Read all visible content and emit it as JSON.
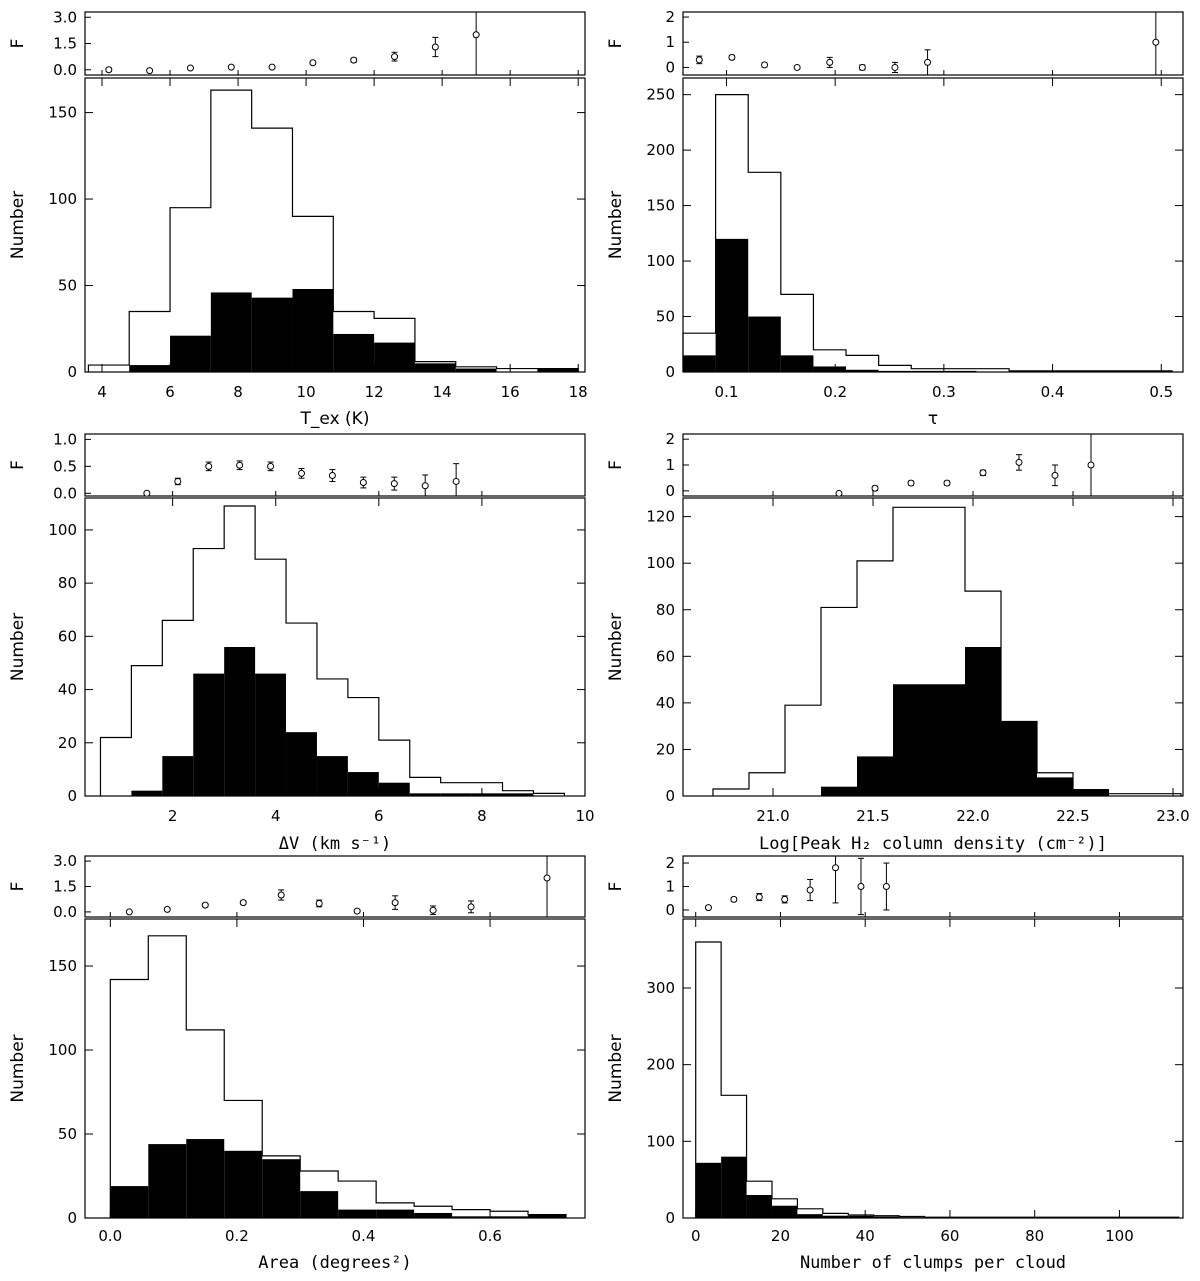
{
  "chart_data": [
    {
      "type": "bar",
      "xlabel": "T_ex (K)",
      "ylabel": "Number",
      "xlim": [
        3.5,
        18.2
      ],
      "ylim": [
        0,
        170
      ],
      "xticks": [
        4,
        6,
        8,
        10,
        12,
        14,
        16,
        18
      ],
      "yticks": [
        0,
        50,
        100,
        150
      ],
      "bin_edges": [
        3.6,
        4.8,
        6.0,
        7.2,
        8.4,
        9.6,
        10.8,
        12.0,
        13.2,
        14.4,
        15.6,
        16.8,
        18.0
      ],
      "open_counts": [
        4,
        35,
        95,
        163,
        141,
        90,
        35,
        31,
        6,
        3,
        2,
        2
      ],
      "filled_counts": [
        0,
        4,
        21,
        46,
        43,
        48,
        22,
        17,
        5,
        2,
        0,
        2
      ],
      "fraction_panel": {
        "ylabel": "F",
        "ylim": [
          -0.3,
          3.3
        ],
        "yticks": [
          0.0,
          1.5,
          3.0
        ],
        "ytick_labels": [
          "0.0",
          "1.5",
          "3.0"
        ],
        "x": [
          4.2,
          5.4,
          6.6,
          7.8,
          9.0,
          10.2,
          11.4,
          12.6,
          13.8,
          15.0
        ],
        "y": [
          0.0,
          -0.05,
          0.1,
          0.15,
          0.15,
          0.4,
          0.55,
          0.75,
          1.3,
          2.0
        ],
        "err": [
          0.1,
          0.05,
          0.05,
          0.05,
          0.05,
          0.08,
          0.12,
          0.25,
          0.55,
          2.8
        ]
      }
    },
    {
      "type": "bar",
      "xlabel": "τ",
      "ylabel": "Number",
      "xlim": [
        0.06,
        0.52
      ],
      "ylim": [
        0,
        265
      ],
      "xticks": [
        0.1,
        0.2,
        0.3,
        0.4,
        0.5
      ],
      "yticks": [
        0,
        50,
        100,
        150,
        200,
        250
      ],
      "bin_edges": [
        0.06,
        0.09,
        0.12,
        0.15,
        0.18,
        0.21,
        0.24,
        0.27,
        0.3,
        0.33,
        0.36,
        0.39,
        0.42,
        0.45,
        0.48,
        0.51
      ],
      "open_counts": [
        35,
        250,
        180,
        70,
        20,
        15,
        6,
        3,
        3,
        3,
        1,
        1,
        1,
        1,
        1
      ],
      "filled_counts": [
        15,
        120,
        50,
        15,
        5,
        2,
        1,
        1,
        1,
        0,
        0,
        0,
        0,
        0,
        0
      ],
      "fraction_panel": {
        "ylabel": "F",
        "ylim": [
          -0.3,
          2.2
        ],
        "yticks": [
          0,
          1,
          2
        ],
        "ytick_labels": [
          "0",
          "1",
          "2"
        ],
        "x": [
          0.075,
          0.105,
          0.135,
          0.165,
          0.195,
          0.225,
          0.255,
          0.285,
          0.495
        ],
        "y": [
          0.3,
          0.4,
          0.1,
          0.0,
          0.2,
          0.0,
          0.0,
          0.2,
          1.0
        ],
        "err": [
          0.15,
          0.08,
          0.08,
          0.05,
          0.2,
          0.1,
          0.2,
          0.5,
          2.5
        ]
      }
    },
    {
      "type": "bar",
      "xlabel": "ΔV (km s⁻¹)",
      "ylabel": "Number",
      "xlim": [
        0.3,
        10.0
      ],
      "ylim": [
        0,
        112
      ],
      "xticks": [
        2,
        4,
        6,
        8,
        10
      ],
      "yticks": [
        0,
        20,
        40,
        60,
        80,
        100
      ],
      "bin_edges": [
        0.6,
        1.2,
        1.8,
        2.4,
        3.0,
        3.6,
        4.2,
        4.8,
        5.4,
        6.0,
        6.6,
        7.2,
        7.8,
        8.4,
        9.0,
        9.6
      ],
      "open_counts": [
        22,
        49,
        66,
        93,
        109,
        89,
        65,
        44,
        37,
        21,
        7,
        5,
        5,
        2,
        1
      ],
      "filled_counts": [
        0,
        2,
        15,
        46,
        56,
        46,
        24,
        15,
        9,
        5,
        1,
        1,
        1,
        1,
        0
      ],
      "fraction_panel": {
        "ylabel": "F",
        "ylim": [
          -0.05,
          1.1
        ],
        "yticks": [
          0.0,
          0.5,
          1.0
        ],
        "ytick_labels": [
          "0.0",
          "0.5",
          "1.0"
        ],
        "x": [
          1.5,
          2.1,
          2.7,
          3.3,
          3.9,
          4.5,
          5.1,
          5.7,
          6.3,
          6.9,
          7.5
        ],
        "y": [
          0.0,
          0.22,
          0.5,
          0.52,
          0.5,
          0.37,
          0.33,
          0.2,
          0.18,
          0.14,
          0.22
        ],
        "err": [
          0.03,
          0.06,
          0.08,
          0.08,
          0.08,
          0.09,
          0.11,
          0.1,
          0.12,
          0.2,
          0.33
        ]
      }
    },
    {
      "type": "bar",
      "xlabel": "Log[Peak H₂ column density (cm⁻²)]",
      "ylabel": "Number",
      "xlim": [
        20.55,
        23.05
      ],
      "ylim": [
        0,
        128
      ],
      "xticks": [
        21.0,
        21.5,
        22.0,
        22.5,
        23.0
      ],
      "yticks": [
        0,
        20,
        40,
        60,
        80,
        100,
        120
      ],
      "bin_edges": [
        20.7,
        20.88,
        21.06,
        21.24,
        21.42,
        21.6,
        21.78,
        21.96,
        22.14,
        22.32,
        22.5,
        22.68,
        22.86,
        23.04
      ],
      "open_counts": [
        3,
        10,
        39,
        81,
        101,
        124,
        124,
        88,
        32,
        10,
        1,
        1,
        1
      ],
      "filled_counts": [
        0,
        0,
        0,
        4,
        17,
        48,
        48,
        64,
        32,
        8,
        3,
        0,
        0
      ],
      "fraction_panel": {
        "ylabel": "F",
        "ylim": [
          -0.2,
          2.2
        ],
        "yticks": [
          0,
          1,
          2
        ],
        "ytick_labels": [
          "0",
          "1",
          "2"
        ],
        "x": [
          21.33,
          21.51,
          21.69,
          21.87,
          22.05,
          22.23,
          22.41,
          22.59
        ],
        "y": [
          -0.1,
          0.1,
          0.3,
          0.3,
          0.7,
          1.1,
          0.6,
          1.0
        ],
        "err": [
          0.05,
          0.08,
          0.08,
          0.08,
          0.1,
          0.3,
          0.4,
          2.4
        ]
      }
    },
    {
      "type": "bar",
      "xlabel": "Area (degrees²)",
      "ylabel": "Number",
      "xlim": [
        -0.04,
        0.75
      ],
      "ylim": [
        0,
        178
      ],
      "xticks": [
        0.0,
        0.2,
        0.4,
        0.6
      ],
      "yticks": [
        0,
        50,
        100,
        150
      ],
      "bin_edges": [
        0.0,
        0.06,
        0.12,
        0.18,
        0.24,
        0.3,
        0.36,
        0.42,
        0.48,
        0.54,
        0.6,
        0.66,
        0.72
      ],
      "open_counts": [
        142,
        168,
        112,
        70,
        37,
        28,
        22,
        9,
        7,
        5,
        4,
        2
      ],
      "filled_counts": [
        19,
        44,
        47,
        40,
        35,
        16,
        5,
        5,
        3,
        1,
        1,
        2
      ],
      "fraction_panel": {
        "ylabel": "F",
        "ylim": [
          -0.3,
          3.3
        ],
        "yticks": [
          0.0,
          1.5,
          3.0
        ],
        "ytick_labels": [
          "0.0",
          "1.5",
          "3.0"
        ],
        "x": [
          0.03,
          0.09,
          0.15,
          0.21,
          0.27,
          0.33,
          0.39,
          0.45,
          0.51,
          0.57,
          0.69
        ],
        "y": [
          0.0,
          0.15,
          0.4,
          0.55,
          1.0,
          0.5,
          0.05,
          0.55,
          0.1,
          0.3,
          2.0
        ],
        "err": [
          0.05,
          0.08,
          0.1,
          0.1,
          0.3,
          0.2,
          0.1,
          0.4,
          0.25,
          0.35,
          2.8
        ]
      }
    },
    {
      "type": "bar",
      "xlabel": "Number of clumps per cloud",
      "ylabel": "Number",
      "xlim": [
        -3,
        115
      ],
      "ylim": [
        0,
        390
      ],
      "xticks": [
        0,
        20,
        40,
        60,
        80,
        100
      ],
      "yticks": [
        0,
        100,
        200,
        300
      ],
      "bin_edges": [
        0,
        6,
        12,
        18,
        24,
        30,
        36,
        42,
        48,
        54,
        60,
        66,
        72,
        78,
        84,
        90,
        96,
        102,
        108,
        114
      ],
      "open_counts": [
        360,
        160,
        48,
        25,
        12,
        6,
        4,
        3,
        2,
        1,
        1,
        1,
        1,
        1,
        1,
        1,
        1,
        1,
        1
      ],
      "filled_counts": [
        72,
        80,
        30,
        16,
        5,
        3,
        3,
        2,
        1,
        0,
        0,
        0,
        0,
        0,
        0,
        0,
        0,
        0,
        0
      ],
      "fraction_panel": {
        "ylabel": "F",
        "ylim": [
          -0.3,
          2.3
        ],
        "yticks": [
          0,
          1,
          2
        ],
        "ytick_labels": [
          "0",
          "1",
          "2"
        ],
        "x": [
          3,
          9,
          15,
          21,
          27,
          33,
          39,
          45
        ],
        "y": [
          0.1,
          0.45,
          0.55,
          0.45,
          0.85,
          1.8,
          1.0,
          1.0
        ],
        "err": [
          0.05,
          0.08,
          0.15,
          0.15,
          0.45,
          1.5,
          1.2,
          1.0
        ]
      }
    }
  ]
}
